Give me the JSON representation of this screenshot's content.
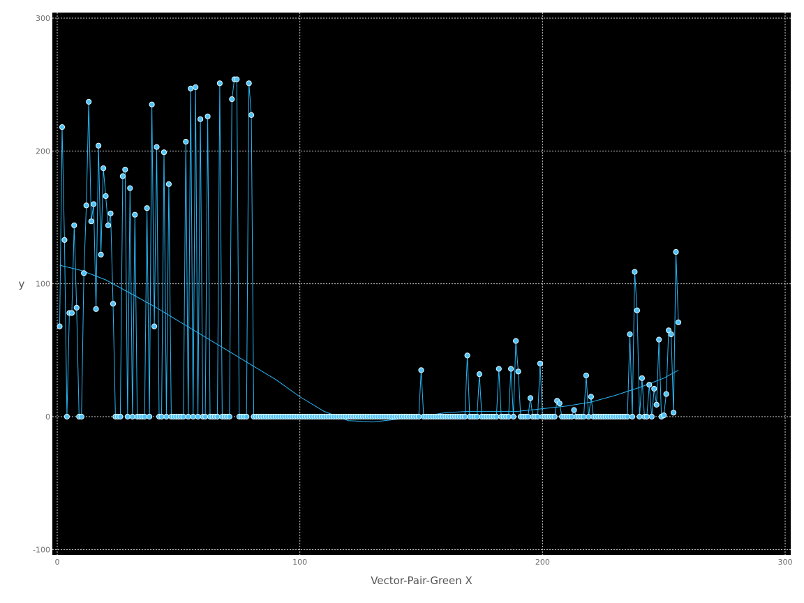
{
  "chart_data": {
    "type": "scatter",
    "xlabel": "Vector-Pair-Green X",
    "ylabel": "y",
    "xlim": [
      0,
      300
    ],
    "ylim": [
      -100,
      300
    ],
    "xticks": [
      0,
      100,
      200,
      300
    ],
    "yticks": [
      -100,
      0,
      100,
      200,
      300
    ],
    "grid": true,
    "background": "#000000",
    "series": [
      {
        "color": "#29b6f6",
        "marker_fill": "#4fc3f7",
        "marker_edge": "#e0f7ff",
        "points": [
          [
            1,
            68
          ],
          [
            2,
            218
          ],
          [
            3,
            133
          ],
          [
            4,
            0
          ],
          [
            5,
            78
          ],
          [
            6,
            78
          ],
          [
            7,
            144
          ],
          [
            8,
            82
          ],
          [
            9,
            0
          ],
          [
            10,
            0
          ],
          [
            11,
            108
          ],
          [
            12,
            159
          ],
          [
            13,
            237
          ],
          [
            14,
            147
          ],
          [
            15,
            160
          ],
          [
            16,
            81
          ],
          [
            17,
            204
          ],
          [
            18,
            122
          ],
          [
            19,
            187
          ],
          [
            20,
            166
          ],
          [
            21,
            144
          ],
          [
            22,
            153
          ],
          [
            23,
            85
          ],
          [
            24,
            0
          ],
          [
            25,
            0
          ],
          [
            26,
            0
          ],
          [
            27,
            181
          ],
          [
            28,
            186
          ],
          [
            29,
            0
          ],
          [
            30,
            172
          ],
          [
            31,
            0
          ],
          [
            32,
            152
          ],
          [
            33,
            0
          ],
          [
            34,
            0
          ],
          [
            35,
            0
          ],
          [
            36,
            0
          ],
          [
            37,
            157
          ],
          [
            38,
            0
          ],
          [
            39,
            235
          ],
          [
            40,
            68
          ],
          [
            41,
            203
          ],
          [
            42,
            0
          ],
          [
            43,
            0
          ],
          [
            44,
            199
          ],
          [
            45,
            0
          ],
          [
            46,
            175
          ],
          [
            47,
            0
          ],
          [
            48,
            0
          ],
          [
            49,
            0
          ],
          [
            50,
            0
          ],
          [
            51,
            0
          ],
          [
            52,
            0
          ],
          [
            53,
            207
          ],
          [
            54,
            0
          ],
          [
            55,
            247
          ],
          [
            56,
            0
          ],
          [
            57,
            248
          ],
          [
            58,
            0
          ],
          [
            59,
            224
          ],
          [
            60,
            0
          ],
          [
            61,
            0
          ],
          [
            62,
            226
          ],
          [
            63,
            0
          ],
          [
            64,
            0
          ],
          [
            65,
            0
          ],
          [
            66,
            0
          ],
          [
            67,
            251
          ],
          [
            68,
            0
          ],
          [
            69,
            0
          ],
          [
            70,
            0
          ],
          [
            71,
            0
          ],
          [
            72,
            239
          ],
          [
            73,
            254
          ],
          [
            74,
            254
          ],
          [
            75,
            0
          ],
          [
            76,
            0
          ],
          [
            77,
            0
          ],
          [
            78,
            0
          ],
          [
            79,
            251
          ],
          [
            80,
            227
          ],
          [
            81,
            0
          ],
          [
            82,
            0
          ],
          [
            83,
            0
          ],
          [
            84,
            0
          ],
          [
            85,
            0
          ],
          [
            86,
            0
          ],
          [
            87,
            0
          ],
          [
            88,
            0
          ],
          [
            89,
            0
          ],
          [
            90,
            0
          ],
          [
            91,
            0
          ],
          [
            92,
            0
          ],
          [
            93,
            0
          ],
          [
            94,
            0
          ],
          [
            95,
            0
          ],
          [
            96,
            0
          ],
          [
            97,
            0
          ],
          [
            98,
            0
          ],
          [
            99,
            0
          ],
          [
            100,
            0
          ],
          [
            101,
            0
          ],
          [
            102,
            0
          ],
          [
            103,
            0
          ],
          [
            104,
            0
          ],
          [
            105,
            0
          ],
          [
            106,
            0
          ],
          [
            107,
            0
          ],
          [
            108,
            0
          ],
          [
            109,
            0
          ],
          [
            110,
            0
          ],
          [
            111,
            0
          ],
          [
            112,
            0
          ],
          [
            113,
            0
          ],
          [
            114,
            0
          ],
          [
            115,
            0
          ],
          [
            116,
            0
          ],
          [
            117,
            0
          ],
          [
            118,
            0
          ],
          [
            119,
            0
          ],
          [
            120,
            0
          ],
          [
            121,
            0
          ],
          [
            122,
            0
          ],
          [
            123,
            0
          ],
          [
            124,
            0
          ],
          [
            125,
            0
          ],
          [
            126,
            0
          ],
          [
            127,
            0
          ],
          [
            128,
            0
          ],
          [
            129,
            0
          ],
          [
            130,
            0
          ],
          [
            131,
            0
          ],
          [
            132,
            0
          ],
          [
            133,
            0
          ],
          [
            134,
            0
          ],
          [
            135,
            0
          ],
          [
            136,
            0
          ],
          [
            137,
            0
          ],
          [
            138,
            0
          ],
          [
            139,
            0
          ],
          [
            140,
            0
          ],
          [
            141,
            0
          ],
          [
            142,
            0
          ],
          [
            143,
            0
          ],
          [
            144,
            0
          ],
          [
            145,
            0
          ],
          [
            146,
            0
          ],
          [
            147,
            0
          ],
          [
            148,
            0
          ],
          [
            149,
            0
          ],
          [
            150,
            35
          ],
          [
            151,
            0
          ],
          [
            152,
            0
          ],
          [
            153,
            0
          ],
          [
            154,
            0
          ],
          [
            155,
            0
          ],
          [
            156,
            0
          ],
          [
            157,
            0
          ],
          [
            158,
            0
          ],
          [
            159,
            0
          ],
          [
            160,
            0
          ],
          [
            161,
            0
          ],
          [
            162,
            0
          ],
          [
            163,
            0
          ],
          [
            164,
            0
          ],
          [
            165,
            0
          ],
          [
            166,
            0
          ],
          [
            167,
            0
          ],
          [
            168,
            0
          ],
          [
            169,
            46
          ],
          [
            170,
            0
          ],
          [
            171,
            0
          ],
          [
            172,
            0
          ],
          [
            173,
            0
          ],
          [
            174,
            32
          ],
          [
            175,
            0
          ],
          [
            176,
            0
          ],
          [
            177,
            0
          ],
          [
            178,
            0
          ],
          [
            179,
            0
          ],
          [
            180,
            0
          ],
          [
            181,
            0
          ],
          [
            182,
            36
          ],
          [
            183,
            0
          ],
          [
            184,
            0
          ],
          [
            185,
            0
          ],
          [
            186,
            0
          ],
          [
            187,
            36
          ],
          [
            188,
            0
          ],
          [
            189,
            57
          ],
          [
            190,
            34
          ],
          [
            191,
            0
          ],
          [
            192,
            0
          ],
          [
            193,
            0
          ],
          [
            194,
            0
          ],
          [
            195,
            14
          ],
          [
            196,
            0
          ],
          [
            197,
            0
          ],
          [
            198,
            0
          ],
          [
            199,
            40
          ],
          [
            200,
            0
          ],
          [
            201,
            0
          ],
          [
            202,
            0
          ],
          [
            203,
            0
          ],
          [
            204,
            0
          ],
          [
            205,
            0
          ],
          [
            206,
            12
          ],
          [
            207,
            10
          ],
          [
            208,
            0
          ],
          [
            209,
            0
          ],
          [
            210,
            0
          ],
          [
            211,
            0
          ],
          [
            212,
            0
          ],
          [
            213,
            5
          ],
          [
            214,
            0
          ],
          [
            215,
            0
          ],
          [
            216,
            0
          ],
          [
            217,
            0
          ],
          [
            218,
            31
          ],
          [
            219,
            0
          ],
          [
            220,
            15
          ],
          [
            221,
            0
          ],
          [
            222,
            0
          ],
          [
            223,
            0
          ],
          [
            224,
            0
          ],
          [
            225,
            0
          ],
          [
            226,
            0
          ],
          [
            227,
            0
          ],
          [
            228,
            0
          ],
          [
            229,
            0
          ],
          [
            230,
            0
          ],
          [
            231,
            0
          ],
          [
            232,
            0
          ],
          [
            233,
            0
          ],
          [
            234,
            0
          ],
          [
            235,
            0
          ],
          [
            236,
            62
          ],
          [
            237,
            0
          ],
          [
            238,
            109
          ],
          [
            239,
            80
          ],
          [
            240,
            0
          ],
          [
            241,
            29
          ],
          [
            242,
            0
          ],
          [
            243,
            0
          ],
          [
            244,
            24
          ],
          [
            245,
            0
          ],
          [
            246,
            21
          ],
          [
            247,
            9
          ],
          [
            248,
            58
          ],
          [
            249,
            0
          ],
          [
            250,
            1
          ],
          [
            251,
            17
          ],
          [
            252,
            65
          ],
          [
            253,
            62
          ],
          [
            254,
            3
          ],
          [
            255,
            124
          ],
          [
            256,
            71
          ]
        ]
      }
    ],
    "smooth_line": {
      "color": "#29b6f6",
      "points": [
        [
          1,
          114
        ],
        [
          10,
          110
        ],
        [
          20,
          103
        ],
        [
          30,
          93
        ],
        [
          40,
          83
        ],
        [
          50,
          72
        ],
        [
          60,
          61
        ],
        [
          70,
          50
        ],
        [
          80,
          39
        ],
        [
          90,
          28
        ],
        [
          100,
          15
        ],
        [
          110,
          4
        ],
        [
          120,
          -3
        ],
        [
          130,
          -4
        ],
        [
          140,
          -2
        ],
        [
          150,
          0
        ],
        [
          160,
          3
        ],
        [
          170,
          4
        ],
        [
          180,
          4
        ],
        [
          190,
          4
        ],
        [
          200,
          6
        ],
        [
          210,
          8
        ],
        [
          220,
          11
        ],
        [
          230,
          16
        ],
        [
          240,
          22
        ],
        [
          250,
          29
        ],
        [
          256,
          35
        ]
      ]
    }
  }
}
